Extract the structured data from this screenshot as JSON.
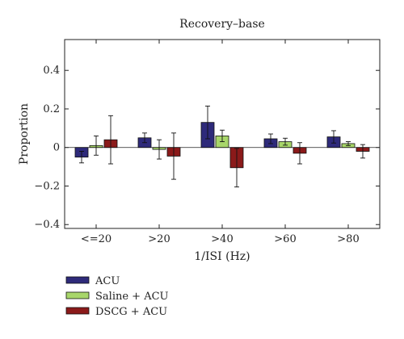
{
  "chart_data": {
    "type": "bar",
    "title": "Recovery–base",
    "xlabel": "1/ISI (Hz)",
    "ylabel": "Proportion",
    "categories": [
      "<=20",
      ">20",
      ">40",
      ">60",
      ">80"
    ],
    "ylim": [
      -0.42,
      0.56
    ],
    "yticks": [
      -0.4,
      -0.2,
      0,
      0.2,
      0.4
    ],
    "ytick_labels": [
      "−0.4",
      "−0.2",
      "0",
      "0.2",
      "0.4"
    ],
    "grid": false,
    "legend_position": "bottom-left",
    "series": [
      {
        "name": "ACU",
        "color": "#2e2a7a",
        "values": [
          -0.05,
          0.05,
          0.13,
          0.045,
          0.055
        ],
        "errors": [
          0.03,
          0.025,
          0.085,
          0.025,
          0.032
        ]
      },
      {
        "name": "Saline + ACU",
        "color": "#a8d66a",
        "values": [
          0.01,
          -0.01,
          0.06,
          0.03,
          0.02
        ],
        "errors": [
          0.05,
          0.05,
          0.03,
          0.018,
          0.01
        ]
      },
      {
        "name": "DSCG + ACU",
        "color": "#8b1a1a",
        "values": [
          0.04,
          -0.045,
          -0.105,
          -0.03,
          -0.02
        ],
        "errors": [
          0.125,
          0.12,
          0.1,
          0.055,
          0.035
        ]
      }
    ]
  }
}
